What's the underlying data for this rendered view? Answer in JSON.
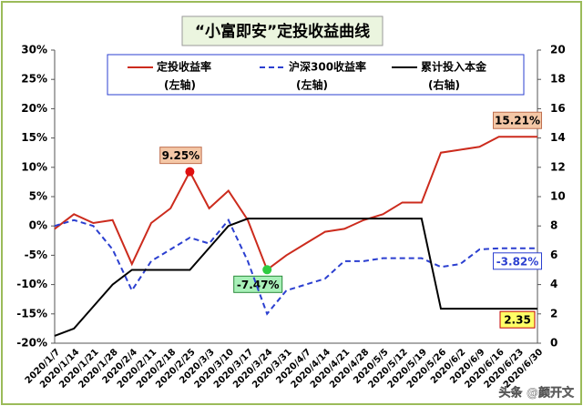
{
  "chart_data": {
    "type": "line",
    "title": "“小富即安”定投收益曲线",
    "watermark": "头条 @颜开文",
    "categories": [
      "2020/1/7",
      "2020/1/14",
      "2020/1/21",
      "2020/1/28",
      "2020/2/4",
      "2020/2/11",
      "2020/2/18",
      "2020/2/25",
      "2020/3/3",
      "2020/3/10",
      "2020/3/17",
      "2020/3/24",
      "2020/3/31",
      "2020/4/7",
      "2020/4/14",
      "2020/4/21",
      "2020/4/28",
      "2020/5/5",
      "2020/5/12",
      "2020/5/19",
      "2020/5/26",
      "2020/6/2",
      "2020/6/9",
      "2020/6/16",
      "2020/6/23",
      "2020/6/30"
    ],
    "ylim": [
      -20,
      30
    ],
    "yticks": [
      {
        "value": -20,
        "label": "-20%"
      },
      {
        "value": -15,
        "label": "-15%"
      },
      {
        "value": -10,
        "label": "-10%"
      },
      {
        "value": -5,
        "label": "-5%"
      },
      {
        "value": 0,
        "label": "0%"
      },
      {
        "value": 5,
        "label": "5%"
      },
      {
        "value": 10,
        "label": "10%"
      },
      {
        "value": 15,
        "label": "15%"
      },
      {
        "value": 20,
        "label": "20%"
      },
      {
        "value": 25,
        "label": "25%"
      },
      {
        "value": 30,
        "label": "30%"
      }
    ],
    "y2lim": [
      0,
      20
    ],
    "y2ticks": [
      0,
      2,
      4,
      6,
      8,
      10,
      12,
      14,
      16,
      18,
      20
    ],
    "series": [
      {
        "name": "定投收益率",
        "legend_note": "(左轴)",
        "color": "#cc2b1d",
        "dash": false,
        "values": [
          -0.5,
          2,
          0.5,
          1,
          -6.5,
          0.5,
          3,
          9.25,
          3,
          6,
          1,
          -7.47,
          -5,
          -3,
          -1,
          -0.5,
          1,
          2,
          4,
          4,
          12.5,
          13,
          13.5,
          15.21,
          15.21,
          15.21
        ],
        "value_labels": [
          null,
          null,
          null,
          null,
          null,
          null,
          null,
          "9.25%",
          null,
          null,
          null,
          "-7.47%",
          null,
          null,
          null,
          null,
          null,
          null,
          null,
          null,
          null,
          null,
          null,
          null,
          null,
          "15.21%"
        ]
      },
      {
        "name": "沪深300收益率",
        "legend_note": "(左轴)",
        "color": "#2b3fd0",
        "dash": true,
        "values": [
          0,
          1,
          0,
          -4,
          -11,
          -6,
          -4,
          -2,
          -3,
          1,
          -6,
          -15,
          -11,
          -10,
          -9,
          -6,
          -6,
          -5.5,
          -5.5,
          -5.5,
          -7,
          -6.5,
          -4,
          -3.82,
          -3.82,
          -3.82
        ],
        "value_labels": [
          null,
          null,
          null,
          null,
          null,
          null,
          null,
          null,
          null,
          null,
          null,
          null,
          null,
          null,
          null,
          null,
          null,
          null,
          null,
          null,
          null,
          null,
          null,
          null,
          null,
          "-3.82%"
        ]
      },
      {
        "name": "累计投入本金",
        "legend_note": "(右轴)",
        "color": "#000000",
        "dash": false,
        "axis": "y2",
        "values": [
          0.5,
          1,
          2.5,
          4,
          5,
          5,
          5,
          5,
          6.5,
          8,
          8.5,
          8.5,
          8.5,
          8.5,
          8.5,
          8.5,
          8.5,
          8.5,
          8.5,
          8.5,
          2.35,
          2.35,
          2.35,
          2.35,
          2.35,
          2.35
        ],
        "value_labels": [
          null,
          null,
          null,
          null,
          null,
          null,
          null,
          null,
          null,
          null,
          null,
          null,
          null,
          null,
          null,
          null,
          null,
          null,
          null,
          null,
          null,
          null,
          null,
          null,
          null,
          "2.35"
        ]
      }
    ]
  }
}
